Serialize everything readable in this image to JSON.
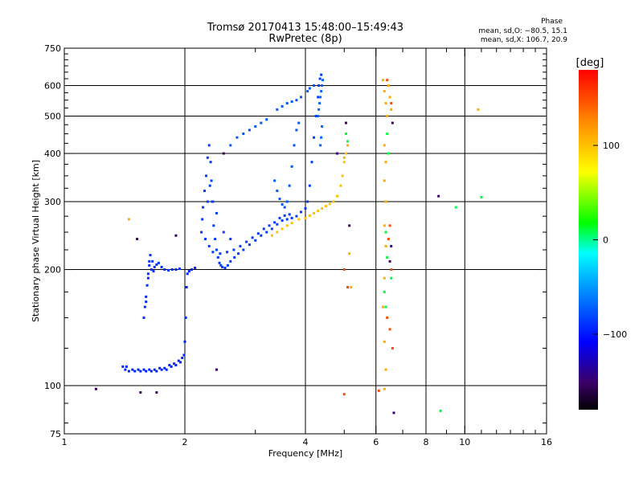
{
  "header": {
    "title": "Tromsø 20170413 15:48:00–15:49:43",
    "subtitle": "RwPretec (8p)"
  },
  "phase_stats": {
    "heading": "Phase",
    "line_o": "mean, sd,O: −80.5, 15.1",
    "line_x": "mean, sd,X: 106.7, 20.9"
  },
  "colorbar": {
    "unit_label": "[deg]",
    "ticks": [
      "100",
      "0",
      "−100"
    ],
    "tick_values": [
      100,
      0,
      -100
    ],
    "range": [
      -180,
      180
    ]
  },
  "chart_data": {
    "type": "scatter",
    "title": "Tromsø 20170413 15:48:00–15:49:43",
    "subtitle": "RwPretec (8p)",
    "xlabel": "Frequency [MHz]",
    "ylabel": "Stationary phase Virtual Height [km]",
    "x_scale": "log",
    "y_scale": "log",
    "xlim": [
      1,
      16
    ],
    "ylim": [
      75,
      750
    ],
    "x_ticks": [
      {
        "v": 1,
        "label": "1"
      },
      {
        "v": 2,
        "label": "2"
      },
      {
        "v": 4,
        "label": "4"
      },
      {
        "v": 6,
        "label": "6"
      },
      {
        "v": 8,
        "label": "8"
      },
      {
        "v": 10,
        "label": "10"
      },
      {
        "v": 16,
        "label": "16"
      }
    ],
    "y_ticks": [
      {
        "v": 75,
        "label": "75"
      },
      {
        "v": 100,
        "label": "100"
      },
      {
        "v": 200,
        "label": "200"
      },
      {
        "v": 300,
        "label": "300"
      },
      {
        "v": 400,
        "label": "400"
      },
      {
        "v": 500,
        "label": "500"
      },
      {
        "v": 600,
        "label": "600"
      },
      {
        "v": 750,
        "label": "750"
      }
    ],
    "x_grid": [
      2,
      4,
      6,
      8,
      10
    ],
    "y_grid": [
      100,
      200,
      300,
      400,
      500,
      600
    ],
    "grid": true,
    "color_scale": "phase [deg], rainbow −180 to 180",
    "series": [
      {
        "phase": -95,
        "points": [
          [
            1.4,
            112
          ],
          [
            1.42,
            110
          ],
          [
            1.45,
            109
          ],
          [
            1.5,
            109
          ],
          [
            1.55,
            109
          ],
          [
            1.6,
            109
          ],
          [
            1.65,
            109
          ],
          [
            1.7,
            109
          ],
          [
            1.75,
            110
          ],
          [
            1.8,
            110
          ],
          [
            1.85,
            112
          ],
          [
            1.9,
            113
          ],
          [
            1.95,
            115
          ],
          [
            1.99,
            120
          ],
          [
            2.0,
            130
          ],
          [
            2.01,
            150
          ],
          [
            2.02,
            180
          ],
          [
            2.03,
            195
          ],
          [
            2.05,
            198
          ],
          [
            2.08,
            200
          ],
          [
            2.12,
            202
          ],
          [
            1.43,
            112
          ],
          [
            1.48,
            110
          ],
          [
            1.53,
            110
          ],
          [
            1.58,
            110
          ],
          [
            1.63,
            110
          ],
          [
            1.68,
            110
          ],
          [
            1.73,
            111
          ],
          [
            1.78,
            111
          ],
          [
            1.83,
            113
          ],
          [
            1.88,
            114
          ],
          [
            1.93,
            116
          ],
          [
            1.97,
            118
          ]
        ]
      },
      {
        "phase": -90,
        "points": [
          [
            1.58,
            150
          ],
          [
            1.59,
            160
          ],
          [
            1.6,
            170
          ],
          [
            1.61,
            182
          ],
          [
            1.62,
            195
          ],
          [
            1.63,
            210
          ],
          [
            1.64,
            218
          ],
          [
            1.66,
            210
          ],
          [
            1.68,
            203
          ],
          [
            1.7,
            206
          ],
          [
            1.72,
            208
          ],
          [
            1.75,
            203
          ],
          [
            1.78,
            200
          ],
          [
            1.82,
            199
          ],
          [
            1.86,
            200
          ],
          [
            1.9,
            200
          ],
          [
            1.94,
            201
          ],
          [
            1.6,
            165
          ],
          [
            1.62,
            190
          ],
          [
            1.63,
            205
          ],
          [
            1.65,
            200
          ],
          [
            1.67,
            198
          ]
        ]
      },
      {
        "phase": -85,
        "points": [
          [
            2.2,
            250
          ],
          [
            2.21,
            270
          ],
          [
            2.22,
            290
          ],
          [
            2.24,
            320
          ],
          [
            2.26,
            350
          ],
          [
            2.28,
            390
          ],
          [
            2.3,
            420
          ],
          [
            2.32,
            380
          ],
          [
            2.33,
            340
          ],
          [
            2.34,
            300
          ],
          [
            2.36,
            260
          ],
          [
            2.38,
            240
          ],
          [
            2.4,
            225
          ],
          [
            2.42,
            215
          ],
          [
            2.44,
            208
          ],
          [
            2.46,
            205
          ],
          [
            2.48,
            203
          ],
          [
            2.52,
            202
          ],
          [
            2.56,
            205
          ],
          [
            2.6,
            210
          ],
          [
            2.66,
            215
          ],
          [
            2.72,
            220
          ],
          [
            2.8,
            225
          ],
          [
            2.9,
            232
          ],
          [
            3.0,
            238
          ],
          [
            3.1,
            245
          ],
          [
            3.2,
            250
          ],
          [
            3.3,
            255
          ],
          [
            3.4,
            262
          ],
          [
            3.5,
            268
          ],
          [
            3.6,
            270
          ],
          [
            3.7,
            272
          ],
          [
            3.8,
            275
          ],
          [
            3.9,
            282
          ],
          [
            4.0,
            288
          ],
          [
            4.05,
            300
          ],
          [
            4.1,
            330
          ],
          [
            4.15,
            380
          ],
          [
            4.2,
            440
          ],
          [
            4.25,
            500
          ],
          [
            4.3,
            560
          ],
          [
            4.32,
            600
          ],
          [
            4.35,
            625
          ],
          [
            4.38,
            640
          ],
          [
            2.25,
            240
          ],
          [
            2.3,
            230
          ],
          [
            2.35,
            222
          ],
          [
            2.45,
            220
          ],
          [
            2.55,
            222
          ],
          [
            2.65,
            225
          ],
          [
            2.75,
            230
          ],
          [
            2.85,
            236
          ],
          [
            2.95,
            242
          ],
          [
            3.05,
            248
          ],
          [
            3.15,
            255
          ],
          [
            3.25,
            260
          ],
          [
            3.35,
            265
          ],
          [
            3.45,
            272
          ],
          [
            3.55,
            276
          ],
          [
            3.65,
            278
          ],
          [
            2.28,
            300
          ],
          [
            2.31,
            330
          ],
          [
            2.35,
            300
          ],
          [
            2.4,
            280
          ],
          [
            2.5,
            250
          ],
          [
            2.6,
            240
          ]
        ]
      },
      {
        "phase": -75,
        "points": [
          [
            3.35,
            340
          ],
          [
            3.4,
            320
          ],
          [
            3.45,
            305
          ],
          [
            3.5,
            295
          ],
          [
            3.55,
            290
          ],
          [
            3.6,
            300
          ],
          [
            3.65,
            330
          ],
          [
            3.7,
            370
          ],
          [
            3.75,
            420
          ],
          [
            3.8,
            460
          ],
          [
            3.85,
            480
          ],
          [
            2.6,
            420
          ],
          [
            2.7,
            440
          ],
          [
            2.8,
            450
          ],
          [
            2.9,
            460
          ],
          [
            3.0,
            470
          ],
          [
            3.1,
            480
          ],
          [
            3.2,
            490
          ],
          [
            3.4,
            520
          ],
          [
            3.5,
            530
          ],
          [
            3.6,
            540
          ],
          [
            3.7,
            545
          ],
          [
            3.8,
            550
          ],
          [
            3.9,
            560
          ],
          [
            4.05,
            580
          ],
          [
            4.1,
            590
          ],
          [
            4.2,
            600
          ]
        ]
      },
      {
        "phase": -70,
        "points": [
          [
            4.3,
            500
          ],
          [
            4.32,
            520
          ],
          [
            4.34,
            540
          ],
          [
            4.36,
            560
          ],
          [
            4.38,
            580
          ],
          [
            4.4,
            600
          ],
          [
            4.42,
            620
          ],
          [
            4.4,
            470
          ],
          [
            4.38,
            440
          ],
          [
            4.36,
            420
          ]
        ]
      },
      {
        "phase": 100,
        "points": [
          [
            3.85,
            270
          ],
          [
            4.0,
            272
          ],
          [
            4.1,
            276
          ],
          [
            4.2,
            280
          ],
          [
            4.3,
            284
          ],
          [
            4.4,
            288
          ],
          [
            4.5,
            292
          ],
          [
            4.6,
            296
          ],
          [
            4.7,
            300
          ],
          [
            4.8,
            310
          ],
          [
            4.9,
            330
          ],
          [
            4.95,
            350
          ],
          [
            5.0,
            380
          ],
          [
            5.05,
            400
          ],
          [
            3.6,
            260
          ],
          [
            3.7,
            264
          ],
          [
            3.5,
            255
          ],
          [
            3.4,
            250
          ],
          [
            3.3,
            245
          ]
        ]
      },
      {
        "phase": 110,
        "points": [
          [
            6.25,
            620
          ],
          [
            6.3,
            580
          ],
          [
            6.35,
            540
          ],
          [
            6.4,
            500
          ],
          [
            6.3,
            420
          ],
          [
            6.35,
            380
          ],
          [
            6.3,
            340
          ],
          [
            6.35,
            300
          ],
          [
            6.3,
            260
          ],
          [
            6.35,
            230
          ],
          [
            6.3,
            190
          ],
          [
            6.25,
            160
          ],
          [
            6.3,
            130
          ],
          [
            6.35,
            110
          ],
          [
            6.3,
            98
          ],
          [
            6.45,
            600
          ],
          [
            6.5,
            560
          ],
          [
            6.55,
            520
          ],
          [
            5.1,
            420
          ],
          [
            5.0,
            390
          ],
          [
            5.15,
            220
          ],
          [
            5.2,
            180
          ],
          [
            10.8,
            520
          ],
          [
            1.45,
            270
          ]
        ]
      },
      {
        "phase": 150,
        "points": [
          [
            6.4,
            620
          ],
          [
            6.55,
            540
          ],
          [
            6.5,
            260
          ],
          [
            6.45,
            240
          ],
          [
            6.55,
            200
          ],
          [
            6.4,
            150
          ],
          [
            6.5,
            140
          ],
          [
            6.6,
            125
          ],
          [
            5.0,
            200
          ],
          [
            5.1,
            180
          ],
          [
            5.0,
            95
          ],
          [
            6.1,
            97
          ]
        ]
      },
      {
        "phase": -150,
        "points": [
          [
            6.6,
            480
          ],
          [
            6.55,
            230
          ],
          [
            6.5,
            210
          ],
          [
            6.65,
            85
          ],
          [
            8.6,
            310
          ],
          [
            5.05,
            480
          ],
          [
            5.15,
            260
          ],
          [
            2.4,
            110
          ],
          [
            1.2,
            98
          ],
          [
            1.55,
            96
          ],
          [
            1.7,
            96
          ],
          [
            1.52,
            240
          ],
          [
            1.9,
            245
          ],
          [
            2.5,
            400
          ],
          [
            4.8,
            400
          ]
        ]
      },
      {
        "phase": 10,
        "points": [
          [
            6.4,
            450
          ],
          [
            6.45,
            400
          ],
          [
            6.35,
            250
          ],
          [
            6.4,
            215
          ],
          [
            6.55,
            190
          ],
          [
            8.7,
            86
          ],
          [
            9.5,
            290
          ],
          [
            11.0,
            308
          ],
          [
            5.05,
            450
          ],
          [
            5.1,
            430
          ],
          [
            6.3,
            175
          ],
          [
            6.35,
            160
          ]
        ]
      }
    ]
  }
}
